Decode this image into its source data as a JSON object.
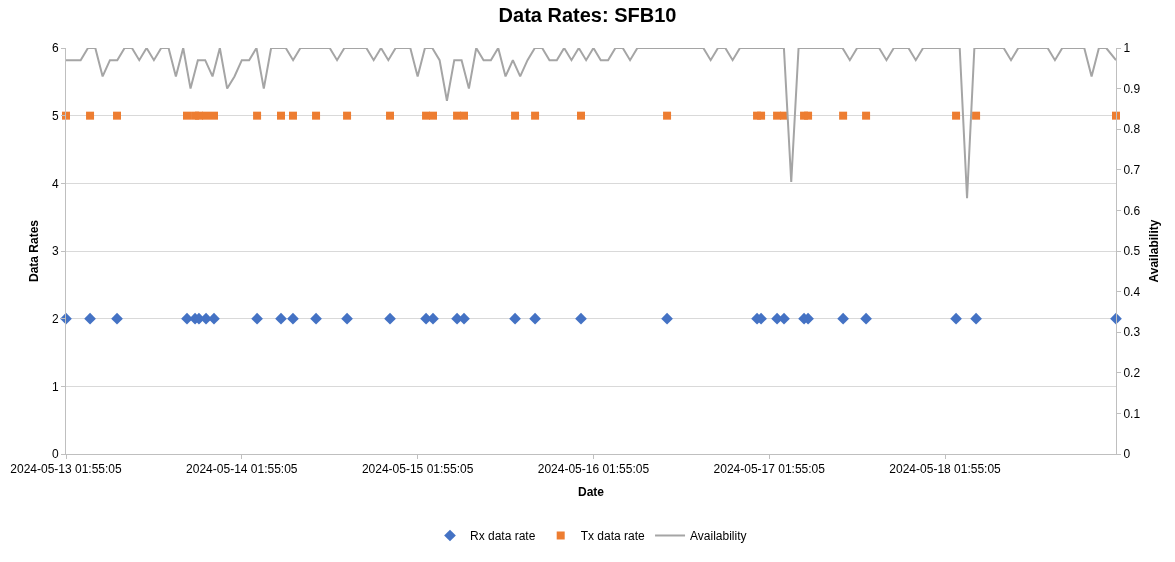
{
  "chart_data": {
    "type": "scatter",
    "title": "Data Rates: SFB10",
    "xlabel": "Date",
    "ylabel": "Data Rates",
    "y2label": "Availability",
    "xlim": [
      "2024-05-13T01:55",
      "2024-05-19T01:15"
    ],
    "xticks": [
      {
        "value": "2024-05-13T01:55",
        "label": "2024-05-13 01:55:05"
      },
      {
        "value": "2024-05-14T01:55",
        "label": "2024-05-14 01:55:05"
      },
      {
        "value": "2024-05-15T01:55",
        "label": "2024-05-15 01:55:05"
      },
      {
        "value": "2024-05-16T01:55",
        "label": "2024-05-16 01:55:05"
      },
      {
        "value": "2024-05-17T01:55",
        "label": "2024-05-17 01:55:05"
      },
      {
        "value": "2024-05-18T01:55",
        "label": "2024-05-18 01:55:05"
      }
    ],
    "ylim": [
      0,
      6
    ],
    "yticks": [
      0,
      1,
      2,
      3,
      4,
      5,
      6
    ],
    "y2lim": [
      0,
      1
    ],
    "y2ticks": [
      0,
      0.1,
      0.2,
      0.3,
      0.4,
      0.5,
      0.6,
      0.7,
      0.8,
      0.9,
      1
    ],
    "grid": "y",
    "legend": "bottom",
    "x": [
      "2024-05-13T01:55",
      "2024-05-13T05:12",
      "2024-05-13T08:53",
      "2024-05-13T18:26",
      "2024-05-13T19:32",
      "2024-05-13T20:04",
      "2024-05-13T21:02",
      "2024-05-13T22:07",
      "2024-05-14T04:00",
      "2024-05-14T07:16",
      "2024-05-14T08:54",
      "2024-05-14T12:03",
      "2024-05-14T16:17",
      "2024-05-14T22:09",
      "2024-05-15T03:04",
      "2024-05-15T04:01",
      "2024-05-15T07:18",
      "2024-05-15T08:15",
      "2024-05-15T15:13",
      "2024-05-15T17:57",
      "2024-05-16T00:13",
      "2024-05-16T11:58",
      "2024-05-17T00:15",
      "2024-05-17T00:48",
      "2024-05-17T02:59",
      "2024-05-17T03:56",
      "2024-05-17T06:40",
      "2024-05-17T07:13",
      "2024-05-17T12:00",
      "2024-05-17T15:08",
      "2024-05-18T03:25",
      "2024-05-18T06:09",
      "2024-05-19T01:15"
    ],
    "series": [
      {
        "name": "Rx data rate",
        "marker": "diamond",
        "color": "#4472c4",
        "values": [
          2,
          2,
          2,
          2,
          2,
          2,
          2,
          2,
          2,
          2,
          2,
          2,
          2,
          2,
          2,
          2,
          2,
          2,
          2,
          2,
          2,
          2,
          2,
          2,
          2,
          2,
          2,
          2,
          2,
          2,
          2,
          2,
          2
        ]
      },
      {
        "name": "Tx data rate",
        "marker": "square",
        "color": "#ed7d31",
        "values": [
          5,
          5,
          5,
          5,
          5,
          5,
          5,
          5,
          5,
          5,
          5,
          5,
          5,
          5,
          5,
          5,
          5,
          5,
          5,
          5,
          5,
          5,
          5,
          5,
          5,
          5,
          5,
          5,
          5,
          5,
          5,
          5,
          5
        ]
      },
      {
        "name": "Availability",
        "type": "line",
        "axis": "y2",
        "marker": "none",
        "line_style": "solid",
        "color": "#a5a5a5",
        "x": [
          "2024-05-13T01:55",
          "2024-05-13T03:55",
          "2024-05-13T04:55",
          "2024-05-13T05:55",
          "2024-05-13T06:55",
          "2024-05-13T07:55",
          "2024-05-13T08:55",
          "2024-05-13T09:55",
          "2024-05-13T10:55",
          "2024-05-13T11:55",
          "2024-05-13T12:55",
          "2024-05-13T13:55",
          "2024-05-13T14:55",
          "2024-05-13T15:55",
          "2024-05-13T16:55",
          "2024-05-13T17:55",
          "2024-05-13T18:55",
          "2024-05-13T19:55",
          "2024-05-13T20:55",
          "2024-05-13T21:55",
          "2024-05-13T22:55",
          "2024-05-13T23:55",
          "2024-05-14T00:55",
          "2024-05-14T01:55",
          "2024-05-14T02:55",
          "2024-05-14T03:55",
          "2024-05-14T04:55",
          "2024-05-14T05:55",
          "2024-05-14T07:55",
          "2024-05-14T08:55",
          "2024-05-14T09:55",
          "2024-05-14T13:55",
          "2024-05-14T14:55",
          "2024-05-14T15:55",
          "2024-05-14T18:55",
          "2024-05-14T19:55",
          "2024-05-14T20:55",
          "2024-05-14T21:55",
          "2024-05-14T22:55",
          "2024-05-15T00:55",
          "2024-05-15T01:55",
          "2024-05-15T02:55",
          "2024-05-15T03:55",
          "2024-05-15T04:55",
          "2024-05-15T05:55",
          "2024-05-15T06:55",
          "2024-05-15T07:55",
          "2024-05-15T08:55",
          "2024-05-15T09:55",
          "2024-05-15T10:55",
          "2024-05-15T11:55",
          "2024-05-15T12:55",
          "2024-05-15T13:55",
          "2024-05-15T14:55",
          "2024-05-15T15:55",
          "2024-05-15T16:55",
          "2024-05-15T17:55",
          "2024-05-15T18:55",
          "2024-05-15T19:55",
          "2024-05-15T20:55",
          "2024-05-15T21:55",
          "2024-05-15T22:55",
          "2024-05-15T23:55",
          "2024-05-16T00:55",
          "2024-05-16T01:55",
          "2024-05-16T02:55",
          "2024-05-16T03:55",
          "2024-05-16T04:55",
          "2024-05-16T05:55",
          "2024-05-16T06:55",
          "2024-05-16T07:55",
          "2024-05-16T16:55",
          "2024-05-16T17:55",
          "2024-05-16T18:55",
          "2024-05-16T19:55",
          "2024-05-16T20:55",
          "2024-05-16T21:55",
          "2024-05-17T03:55",
          "2024-05-17T04:55",
          "2024-05-17T05:55",
          "2024-05-17T11:55",
          "2024-05-17T12:55",
          "2024-05-17T13:55",
          "2024-05-17T16:55",
          "2024-05-17T17:55",
          "2024-05-17T18:55",
          "2024-05-17T20:55",
          "2024-05-17T21:55",
          "2024-05-17T22:55",
          "2024-05-18T03:55",
          "2024-05-18T04:55",
          "2024-05-18T05:55",
          "2024-05-18T09:55",
          "2024-05-18T10:55",
          "2024-05-18T11:55",
          "2024-05-18T15:55",
          "2024-05-18T16:55",
          "2024-05-18T17:55",
          "2024-05-18T20:55",
          "2024-05-18T21:55",
          "2024-05-18T22:55",
          "2024-05-18T23:55",
          "2024-05-19T01:15"
        ],
        "values": [
          0.97,
          0.97,
          1,
          1,
          0.93,
          0.97,
          0.97,
          1,
          1,
          0.97,
          1,
          0.97,
          1,
          1,
          0.93,
          1,
          0.9,
          0.97,
          0.97,
          0.93,
          1,
          0.9,
          0.93,
          0.97,
          0.97,
          1,
          0.9,
          1,
          1,
          0.97,
          1,
          1,
          0.97,
          1,
          1,
          0.97,
          1,
          0.97,
          1,
          1,
          0.93,
          1,
          1,
          0.97,
          0.87,
          0.97,
          0.97,
          0.9,
          1,
          0.97,
          0.97,
          1,
          0.93,
          0.97,
          0.93,
          0.97,
          1,
          1,
          0.97,
          0.97,
          1,
          0.97,
          1,
          0.97,
          1,
          0.97,
          0.97,
          1,
          1,
          0.97,
          1,
          1,
          0.97,
          1,
          1,
          0.97,
          1,
          1,
          0.67,
          1,
          1,
          0.97,
          1,
          1,
          0.97,
          1,
          1,
          0.97,
          1,
          1,
          0.63,
          1,
          1,
          0.97,
          1,
          1,
          0.97,
          1,
          1,
          0.93,
          1,
          1,
          0.97
        ]
      }
    ]
  }
}
